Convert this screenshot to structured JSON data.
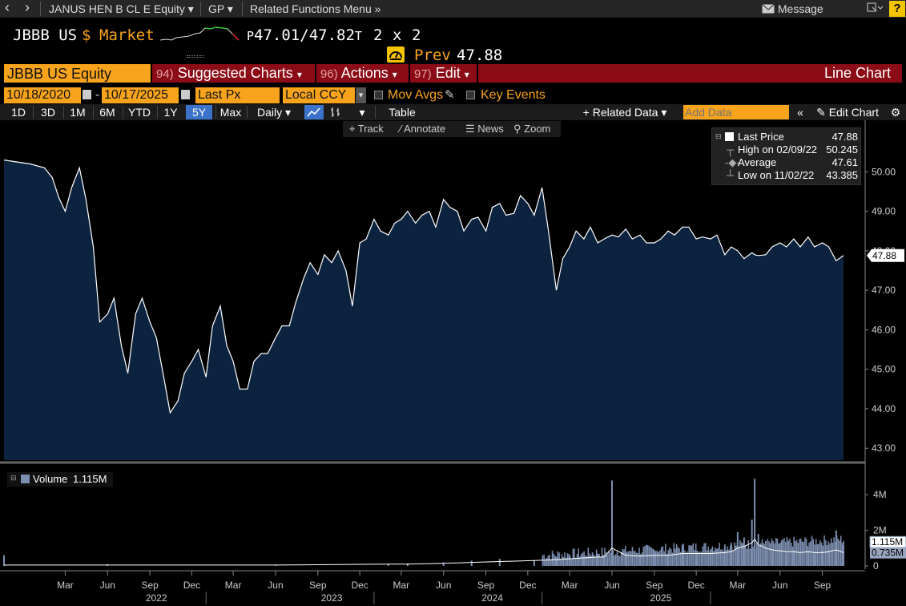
{
  "topbar": {
    "back_glyph": "‹",
    "forward_glyph": "›",
    "security_label": "JANUS HEN B CL E Equity",
    "gp_label": "GP",
    "related_menu_label": "Related Functions Menu",
    "message_label": "Message",
    "help_label": "?"
  },
  "ticker": {
    "symbol": "JBBB US",
    "currency_symbol": "$",
    "market_label": "Market",
    "bid_prefix": "P",
    "bid": "47.01",
    "slash": "/",
    "ask": "47.82",
    "ask_suffix": "T",
    "size_bid": "2",
    "size_x": "x",
    "size_ask": "2",
    "prev_label": "Prev",
    "prev_value": "47.88"
  },
  "funcbar": {
    "security": "JBBB US Equity",
    "suggested_num": "94)",
    "suggested_label": "Suggested Charts",
    "actions_num": "96)",
    "actions_label": "Actions",
    "edit_num": "97)",
    "edit_label": "Edit",
    "chart_type_label": "Line Chart"
  },
  "options": {
    "start_date": "10/18/2020",
    "date_sep": "-",
    "end_date": "10/17/2025",
    "field": "Last Px",
    "currency": "Local CCY",
    "mov_avgs_label": "Mov Avgs",
    "key_events_label": "Key Events"
  },
  "ranges": {
    "items": [
      "1D",
      "3D",
      "1M",
      "6M",
      "YTD",
      "1Y",
      "5Y",
      "Max"
    ],
    "active": "5Y",
    "frequency": "Daily",
    "table_label": "Table",
    "related_data_label": "Related Data",
    "add_data_placeholder": "Add Data",
    "edit_chart_label": "Edit Chart"
  },
  "toolbar2": {
    "track_label": "Track",
    "annotate_label": "Annotate",
    "news_label": "News",
    "zoom_label": "Zoom"
  },
  "legend": {
    "last_price_label": "Last Price",
    "last_price_value": "47.88",
    "high_label": "High on 02/09/22",
    "high_value": "50.245",
    "average_label": "Average",
    "average_value": "47.61",
    "low_label": "Low on 11/02/22",
    "low_value": "43.385"
  },
  "volume_legend": {
    "label": "Volume",
    "value": "1.115M"
  },
  "colors": {
    "area_fill": "#0c2340",
    "line": "#ffffff",
    "accent_orange": "#f7a31c",
    "function_bar_red": "#8b0b16",
    "volume_bar": "#7d8fb0"
  },
  "chart_data": [
    {
      "type": "area",
      "title": "",
      "series": [
        {
          "name": "Last Price"
        }
      ],
      "x": [
        "2020-10-19",
        "2020-11-15",
        "2020-12-15",
        "2021-01-15",
        "2021-02-01",
        "2021-02-15",
        "2021-03-01",
        "2021-03-15",
        "2021-04-01",
        "2021-04-15",
        "2021-05-01",
        "2021-05-15",
        "2021-06-01",
        "2021-06-15",
        "2021-07-01",
        "2021-07-15",
        "2021-08-01",
        "2021-08-15",
        "2021-09-01",
        "2021-09-15",
        "2021-10-01",
        "2021-10-15",
        "2021-11-01",
        "2021-11-15",
        "2021-12-01",
        "2021-12-15",
        "2022-01-01",
        "2022-01-15",
        "2022-02-01",
        "2022-02-15",
        "2022-03-01",
        "2022-03-15",
        "2022-04-01",
        "2022-04-15",
        "2022-05-01",
        "2022-05-15",
        "2022-06-01",
        "2022-06-15",
        "2022-07-01",
        "2022-07-15",
        "2022-08-01",
        "2022-08-15",
        "2022-09-01",
        "2022-09-15",
        "2022-10-01",
        "2022-10-15",
        "2022-11-01",
        "2022-11-15",
        "2022-12-01",
        "2022-12-15",
        "2023-01-01",
        "2023-01-15",
        "2023-02-01",
        "2023-02-15",
        "2023-03-01",
        "2023-03-15",
        "2023-04-01",
        "2023-04-15",
        "2023-05-01",
        "2023-05-15",
        "2023-06-01",
        "2023-06-15",
        "2023-07-01",
        "2023-07-15",
        "2023-08-01",
        "2023-08-15",
        "2023-09-01",
        "2023-09-15",
        "2023-10-01",
        "2023-10-15",
        "2023-11-01",
        "2023-11-15",
        "2023-12-01",
        "2023-12-15",
        "2024-01-01",
        "2024-01-15",
        "2024-02-01",
        "2024-02-15",
        "2024-03-01",
        "2024-03-15",
        "2024-04-01",
        "2024-04-15",
        "2024-05-01",
        "2024-05-15",
        "2024-06-01",
        "2024-06-15",
        "2024-07-01",
        "2024-07-15",
        "2024-08-01",
        "2024-08-15",
        "2024-09-01",
        "2024-09-15",
        "2024-10-01",
        "2024-10-15",
        "2024-11-01",
        "2024-11-15",
        "2024-12-01",
        "2024-12-15",
        "2025-01-01",
        "2025-01-15",
        "2025-02-01",
        "2025-02-15",
        "2025-03-01",
        "2025-03-15",
        "2025-04-01",
        "2025-04-07",
        "2025-04-15",
        "2025-05-01",
        "2025-05-15",
        "2025-06-01",
        "2025-06-15",
        "2025-07-01",
        "2025-07-15",
        "2025-08-01",
        "2025-08-15",
        "2025-09-01",
        "2025-09-15",
        "2025-10-01",
        "2025-10-17"
      ],
      "y": [
        50.3,
        50.25,
        50.2,
        50.1,
        49.85,
        49.35,
        49.0,
        49.6,
        50.1,
        49.3,
        48.1,
        46.2,
        46.4,
        46.8,
        45.6,
        44.9,
        46.4,
        46.8,
        46.2,
        45.8,
        44.8,
        43.9,
        44.2,
        44.9,
        45.2,
        45.5,
        44.8,
        46.1,
        46.6,
        45.6,
        45.2,
        44.5,
        44.5,
        45.2,
        45.4,
        45.4,
        45.8,
        46.1,
        46.1,
        46.7,
        47.3,
        47.7,
        47.4,
        47.9,
        47.7,
        48.0,
        47.5,
        46.6,
        48.2,
        48.3,
        48.8,
        48.5,
        48.4,
        48.7,
        48.8,
        49.0,
        48.7,
        48.9,
        49.0,
        48.6,
        49.3,
        49.1,
        49.0,
        48.5,
        48.8,
        48.85,
        48.5,
        49.1,
        49.2,
        48.9,
        48.95,
        49.4,
        49.2,
        48.9,
        49.6,
        48.5,
        47.0,
        47.8,
        48.1,
        48.5,
        48.3,
        48.6,
        48.2,
        48.3,
        48.4,
        48.35,
        48.55,
        48.3,
        48.4,
        48.2,
        48.2,
        48.3,
        48.5,
        48.4,
        48.6,
        48.6,
        48.3,
        48.35,
        48.3,
        48.4,
        47.9,
        48.1,
        48.0,
        47.8,
        47.95,
        47.9,
        47.88,
        47.9,
        48.1,
        48.2,
        48.1,
        48.3,
        48.1,
        48.35,
        48.1,
        48.2,
        48.1,
        47.75,
        47.88
      ],
      "xticks": [
        {
          "date": "2021-03-01",
          "label": "Mar"
        },
        {
          "date": "2021-06-01",
          "label": "Jun"
        },
        {
          "date": "2021-09-01",
          "label": "Sep"
        },
        {
          "date": "2021-12-01",
          "label": "Dec"
        },
        {
          "date": "2022-03-01",
          "label": "Mar"
        },
        {
          "date": "2022-06-01",
          "label": "Jun"
        },
        {
          "date": "2022-09-01",
          "label": "Sep"
        },
        {
          "date": "2022-12-01",
          "label": "Dec"
        },
        {
          "date": "2023-03-01",
          "label": "Mar"
        },
        {
          "date": "2023-06-01",
          "label": "Jun"
        },
        {
          "date": "2023-09-01",
          "label": "Sep"
        },
        {
          "date": "2023-12-01",
          "label": "Dec"
        },
        {
          "date": "2024-03-01",
          "label": "Mar"
        }
      ],
      "year_labels": [
        {
          "date": "2021-09-15",
          "label": "2022"
        },
        {
          "date": "2022-10-01",
          "label": "2023"
        },
        {
          "date": "2023-09-15",
          "label": "2024"
        },
        {
          "date": "2024-09-15",
          "label": "2025"
        }
      ],
      "yticks": [
        43.0,
        44.0,
        45.0,
        46.0,
        47.0,
        48.0,
        49.0,
        50.0
      ],
      "ytick_labels": [
        "43.00",
        "44.00",
        "45.00",
        "46.00",
        "47.00",
        "48.00",
        "49.00",
        "50.00"
      ],
      "ylim": [
        42.7,
        50.9
      ],
      "last_value_label": "47.88",
      "grid": false,
      "legend_position": "top-right"
    },
    {
      "type": "bar",
      "title": "",
      "series": [
        {
          "name": "Volume"
        }
      ],
      "x": [
        "2020-10-19",
        "2021-06-01",
        "2022-06-01",
        "2023-02-01",
        "2023-03-15",
        "2023-06-01",
        "2023-08-01",
        "2023-10-01",
        "2023-12-15",
        "2024-02-01",
        "2024-03-01",
        "2024-04-01",
        "2024-05-01",
        "2024-05-15",
        "2024-06-01",
        "2024-07-01",
        "2024-08-01",
        "2024-09-01",
        "2024-10-01",
        "2024-11-01",
        "2024-12-01",
        "2025-01-01",
        "2025-02-01",
        "2025-02-15",
        "2025-03-01",
        "2025-03-15",
        "2025-04-01",
        "2025-04-07",
        "2025-04-15",
        "2025-05-01",
        "2025-05-15",
        "2025-06-01",
        "2025-06-15",
        "2025-07-01",
        "2025-07-15",
        "2025-08-01",
        "2025-08-15",
        "2025-09-01",
        "2025-09-15",
        "2025-10-01",
        "2025-10-17"
      ],
      "values": [
        0.6,
        0.1,
        0.05,
        0.1,
        0.15,
        0.2,
        0.3,
        0.4,
        0.3,
        0.5,
        0.6,
        0.5,
        0.7,
        0.5,
        4.8,
        0.8,
        0.6,
        0.9,
        0.7,
        1.0,
        0.8,
        0.9,
        1.1,
        1.3,
        1.9,
        1.6,
        2.6,
        4.9,
        1.8,
        1.4,
        0.8,
        1.2,
        0.7,
        0.9,
        0.8,
        0.9,
        0.8,
        0.9,
        0.9,
        2.0,
        1.115
      ],
      "average_line": [
        0.05,
        0.05,
        0.05,
        0.1,
        0.1,
        0.15,
        0.2,
        0.25,
        0.3,
        0.35,
        0.4,
        0.45,
        0.5,
        0.5,
        1.0,
        0.6,
        0.55,
        0.6,
        0.6,
        0.7,
        0.7,
        0.7,
        0.75,
        0.8,
        1.0,
        1.1,
        1.3,
        1.5,
        1.2,
        1.0,
        0.9,
        0.85,
        0.8,
        0.8,
        0.75,
        0.8,
        0.75,
        0.75,
        0.8,
        0.9,
        0.75
      ],
      "yticks": [
        0,
        2,
        4
      ],
      "ytick_labels": [
        "0",
        "2M",
        "4M"
      ],
      "ylim": [
        0,
        5.0
      ],
      "last_value_label": "1.115M",
      "average_value_label": "0.735M"
    }
  ]
}
